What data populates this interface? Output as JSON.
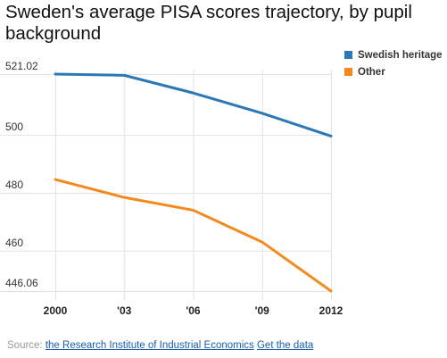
{
  "title": "Sweden's average PISA scores trajectory, by pupil background",
  "legend": [
    {
      "label": "Swedish heritage",
      "color": "#2a78b6"
    },
    {
      "label": "Other",
      "color": "#f38a1d"
    }
  ],
  "source": {
    "prefix": "Source: ",
    "link_text": "the Research Institute of Industrial Economics",
    "get_data": "Get the data"
  },
  "chart_data": {
    "type": "line",
    "title": "Sweden's average PISA scores trajectory, by pupil background",
    "xlabel": "",
    "ylabel": "",
    "categories": [
      "2000",
      "'03",
      "'06",
      "'09",
      "2012"
    ],
    "ylim": [
      446.06,
      521.02
    ],
    "y_tick_labels": [
      "521.02",
      "500",
      "480",
      "460",
      "446.06"
    ],
    "y_ticks": [
      521.02,
      500,
      480,
      460,
      446.06
    ],
    "grid": true,
    "legend_position": "top-right",
    "series": [
      {
        "name": "Swedish heritage",
        "color": "#2a78b6",
        "values": [
          521.02,
          520.6,
          514.5,
          507.5,
          499.6
        ]
      },
      {
        "name": "Other",
        "color": "#f38a1d",
        "values": [
          484.6,
          478.4,
          474.0,
          463.0,
          446.06
        ]
      }
    ]
  }
}
